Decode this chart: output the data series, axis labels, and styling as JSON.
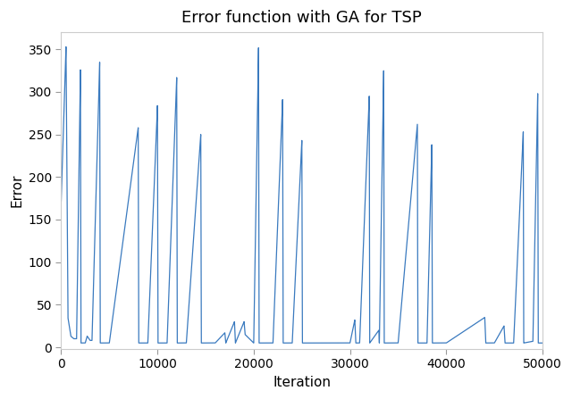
{
  "title": "Error function with GA for TSP",
  "xlabel": "Iteration",
  "ylabel": "Error",
  "xlim": [
    0,
    50000
  ],
  "ylim": [
    -2,
    370
  ],
  "line_color": "#3a7abf",
  "background_color": "#ffffff",
  "title_fontsize": 13,
  "label_fontsize": 11,
  "spike_segments": [
    [
      0,
      172,
      500,
      353,
      700,
      35,
      1000,
      13,
      1300,
      10,
      1600,
      10,
      2000,
      326,
      2050,
      5,
      2200,
      5,
      2500,
      5,
      2700,
      13,
      3000,
      8,
      3200,
      8,
      4000,
      335,
      4050,
      5,
      4300,
      5,
      5000,
      5
    ],
    [
      5000,
      5,
      8000,
      258,
      8050,
      5,
      9000,
      5,
      10000,
      284,
      10050,
      5,
      11000,
      5,
      12000,
      317,
      12050,
      5,
      13000,
      5,
      14500,
      250,
      14550,
      5,
      16000,
      5
    ],
    [
      16000,
      5,
      17000,
      17,
      17100,
      5,
      18000,
      30,
      18100,
      5,
      19000,
      30,
      19100,
      15,
      20000,
      5,
      20500,
      352,
      20550,
      5,
      22000,
      5
    ],
    [
      22000,
      5,
      23000,
      291,
      23050,
      5,
      24000,
      5,
      25000,
      243,
      25050,
      5,
      27000,
      5,
      30000,
      5
    ],
    [
      30000,
      5,
      30500,
      32,
      30600,
      5,
      31000,
      5,
      32000,
      295,
      32050,
      5,
      33000,
      20,
      33050,
      5,
      33500,
      325,
      33550,
      5,
      35000,
      5
    ],
    [
      35000,
      5,
      37000,
      262,
      37050,
      5,
      38000,
      5,
      38500,
      238,
      38550,
      5,
      40000,
      5
    ],
    [
      40000,
      5,
      44000,
      35,
      44100,
      5,
      45000,
      5,
      46000,
      25,
      46100,
      5,
      47000,
      5,
      48000,
      253,
      48050,
      5,
      49000,
      7,
      49500,
      298,
      49550,
      5,
      50000,
      5
    ]
  ]
}
